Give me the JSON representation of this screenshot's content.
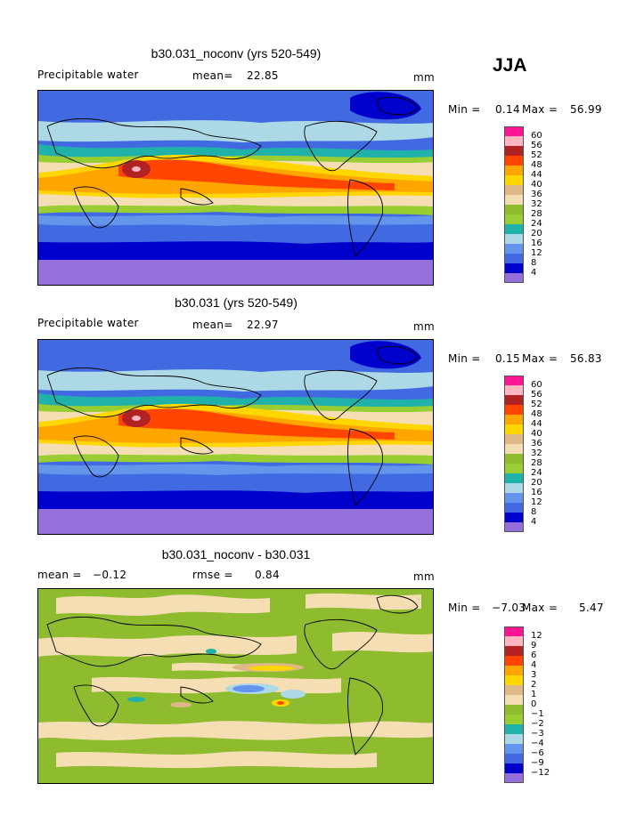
{
  "season": "JJA",
  "colors": {
    "abs_scale": [
      "#9370db",
      "#0000cd",
      "#4169e1",
      "#6495ed",
      "#add8e6",
      "#20b2aa",
      "#9acd32",
      "#8fbc2f",
      "#f5deb3",
      "#deb887",
      "#ffd700",
      "#ffa500",
      "#ff4500",
      "#b22222",
      "#ffb6c1",
      "#ff1493"
    ],
    "diff_scale": [
      "#9370db",
      "#0000cd",
      "#4169e1",
      "#6495ed",
      "#add8e6",
      "#20b2aa",
      "#9acd32",
      "#8fbc2f",
      "#f5deb3",
      "#deb887",
      "#ffd700",
      "#ffa500",
      "#ff4500",
      "#b22222",
      "#ffb6c1",
      "#ff1493"
    ]
  },
  "panels": [
    {
      "title": "b30.031_noconv (yrs 520-549)",
      "variable": "Precipitable water",
      "mean_label": "mean=",
      "mean_value": "22.85",
      "units": "mm",
      "min_label": "Min =",
      "min_value": "0.14",
      "max_label": "Max =",
      "max_value": "56.99",
      "colorbar_labels": [
        "60",
        "56",
        "52",
        "48",
        "44",
        "40",
        "36",
        "32",
        "28",
        "24",
        "20",
        "16",
        "12",
        "8",
        "4"
      ]
    },
    {
      "title": "b30.031 (yrs 520-549)",
      "variable": "Precipitable water",
      "mean_label": "mean=",
      "mean_value": "22.97",
      "units": "mm",
      "min_label": "Min =",
      "min_value": "0.15",
      "max_label": "Max =",
      "max_value": "56.83",
      "colorbar_labels": [
        "60",
        "56",
        "52",
        "48",
        "44",
        "40",
        "36",
        "32",
        "28",
        "24",
        "20",
        "16",
        "12",
        "8",
        "4"
      ]
    },
    {
      "title": "b30.031_noconv - b30.031",
      "mean_label": "mean =",
      "mean_value": "−0.12",
      "rmse_label": "rmse =",
      "rmse_value": "0.84",
      "units": "mm",
      "min_label": "Min =",
      "min_value": "−7.03",
      "max_label": "Max =",
      "max_value": "5.47",
      "colorbar_labels": [
        "12",
        "9",
        "6",
        "4",
        "3",
        "2",
        "1",
        "0",
        "−1",
        "−2",
        "−3",
        "−4",
        "−6",
        "−9",
        "−12"
      ]
    }
  ],
  "chart_data": [
    {
      "type": "heatmap",
      "title": "b30.031_noconv (yrs 520-549)",
      "variable": "Precipitable water",
      "units": "mm",
      "mean": 22.85,
      "min": 0.14,
      "max": 56.99,
      "contour_levels": [
        4,
        8,
        12,
        16,
        20,
        24,
        28,
        32,
        36,
        40,
        44,
        48,
        52,
        56,
        60
      ]
    },
    {
      "type": "heatmap",
      "title": "b30.031 (yrs 520-549)",
      "variable": "Precipitable water",
      "units": "mm",
      "mean": 22.97,
      "min": 0.15,
      "max": 56.83,
      "contour_levels": [
        4,
        8,
        12,
        16,
        20,
        24,
        28,
        32,
        36,
        40,
        44,
        48,
        52,
        56,
        60
      ]
    },
    {
      "type": "heatmap",
      "title": "b30.031_noconv - b30.031",
      "units": "mm",
      "mean": -0.12,
      "rmse": 0.84,
      "min": -7.03,
      "max": 5.47,
      "contour_levels": [
        -12,
        -9,
        -6,
        -4,
        -3,
        -2,
        -1,
        0,
        1,
        2,
        3,
        4,
        6,
        9,
        12
      ]
    }
  ]
}
